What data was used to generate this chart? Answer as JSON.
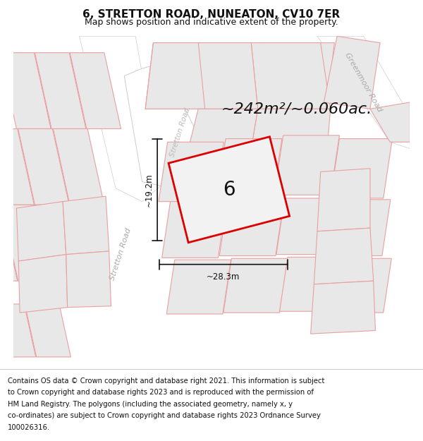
{
  "title": "6, STRETTON ROAD, NUNEATON, CV10 7ER",
  "subtitle": "Map shows position and indicative extent of the property.",
  "area_text": "~242m²/~0.060ac.",
  "number_label": "6",
  "dim_width": "~28.3m",
  "dim_height": "~19.2m",
  "footer_lines": [
    "Contains OS data © Crown copyright and database right 2021. This information is subject",
    "to Crown copyright and database rights 2023 and is reproduced with the permission of",
    "HM Land Registry. The polygons (including the associated geometry, namely x, y",
    "co-ordinates) are subject to Crown copyright and database rights 2023 Ordnance Survey",
    "100026316."
  ],
  "bg_color": "#f5f5f5",
  "parcel_fill": "#e8e8e8",
  "parcel_edge": "#e8a0a0",
  "road_fill": "#ffffff",
  "road_edge": "#cccccc",
  "plot_outline_color": "#dd0000",
  "plot_fill_color": "#f0f0f0",
  "dim_line_color": "#111111",
  "text_color": "#111111",
  "road_label_color": "#aaaaaa",
  "title_fontsize": 11,
  "subtitle_fontsize": 9,
  "area_fontsize": 16,
  "footer_fontsize": 7.2
}
